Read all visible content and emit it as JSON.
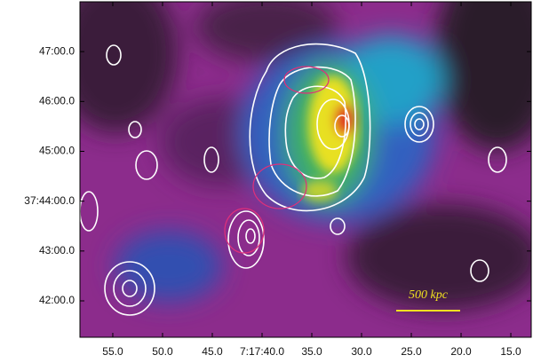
{
  "chart_data": {
    "type": "image",
    "annotation": "500 kpc",
    "xlim": [
      58.3,
      12.95
    ],
    "ylim": [
      41.27,
      48.0
    ],
    "xticks": [
      {
        "value": 55,
        "label": "55.0"
      },
      {
        "value": 50,
        "label": "50.0"
      },
      {
        "value": 45,
        "label": "45.0"
      },
      {
        "value": 40,
        "label": "7:17:40.0"
      },
      {
        "value": 35,
        "label": "35.0"
      },
      {
        "value": 30,
        "label": "30.0"
      },
      {
        "value": 25,
        "label": "25.0"
      },
      {
        "value": 20,
        "label": "20.0"
      },
      {
        "value": 15,
        "label": "15.0"
      }
    ],
    "yticks": [
      {
        "value": 47,
        "label": "47:00.0"
      },
      {
        "value": 46,
        "label": "46:00.0"
      },
      {
        "value": 45,
        "label": "45:00.0"
      },
      {
        "value": 44,
        "label": "37:44:00.0"
      },
      {
        "value": 43,
        "label": "43:00.0"
      },
      {
        "value": 42,
        "label": "42:00.0"
      }
    ]
  }
}
